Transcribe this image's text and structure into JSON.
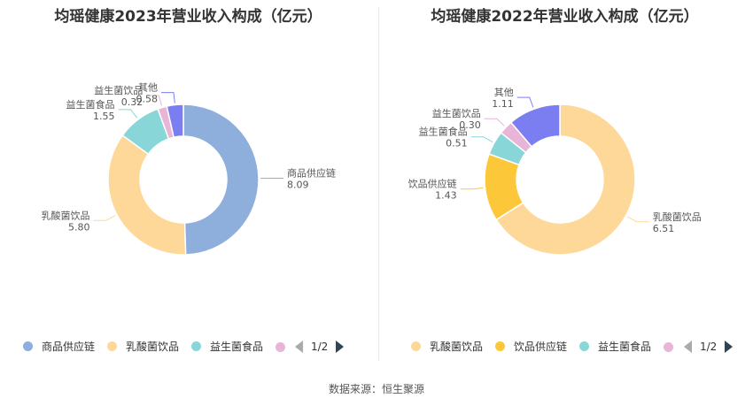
{
  "charts": [
    {
      "title": "均瑶健康2023年营业收入构成（亿元）",
      "page_indicator": "1/2"
    },
    {
      "title": "均瑶健康2022年营业收入构成（亿元）",
      "page_indicator": "1/2"
    }
  ],
  "source": "数据来源：恒生聚源",
  "chart_data": [
    {
      "type": "pie",
      "donut": true,
      "title": "均瑶健康2023年营业收入构成（亿元）",
      "unit": "亿元",
      "slices": [
        {
          "name": "商品供应链",
          "value": 8.09,
          "label": "8.09",
          "color": "#8eaedb"
        },
        {
          "name": "乳酸菌饮品",
          "value": 5.8,
          "label": "5.80",
          "color": "#fdd898"
        },
        {
          "name": "益生菌食品",
          "value": 1.55,
          "label": "1.55",
          "color": "#88d6d8"
        },
        {
          "name": "益生菌饮品",
          "value": 0.32,
          "label": "0.32",
          "color": "#e8b4d8"
        },
        {
          "name": "其他",
          "value": 0.58,
          "label": "0.58",
          "color": "#7b7ef0"
        }
      ],
      "legend_visible": [
        "商品供应链",
        "乳酸菌饮品",
        "益生菌食品"
      ],
      "legend_placement": "bottom"
    },
    {
      "type": "pie",
      "donut": true,
      "title": "均瑶健康2022年营业收入构成（亿元）",
      "unit": "亿元",
      "slices": [
        {
          "name": "乳酸菌饮品",
          "value": 6.51,
          "label": "6.51",
          "color": "#fdd898"
        },
        {
          "name": "饮品供应链",
          "value": 1.43,
          "label": "1.43",
          "color": "#fcc83a"
        },
        {
          "name": "益生菌食品",
          "value": 0.51,
          "label": "0.51",
          "color": "#88d6d8"
        },
        {
          "name": "益生菌饮品",
          "value": 0.3,
          "label": "0.30",
          "color": "#e8b4d8"
        },
        {
          "name": "其他",
          "value": 1.11,
          "label": "1.11",
          "color": "#7b7ef0"
        }
      ],
      "legend_visible": [
        "乳酸菌饮品",
        "饮品供应链",
        "益生菌食品"
      ],
      "legend_placement": "bottom"
    }
  ]
}
